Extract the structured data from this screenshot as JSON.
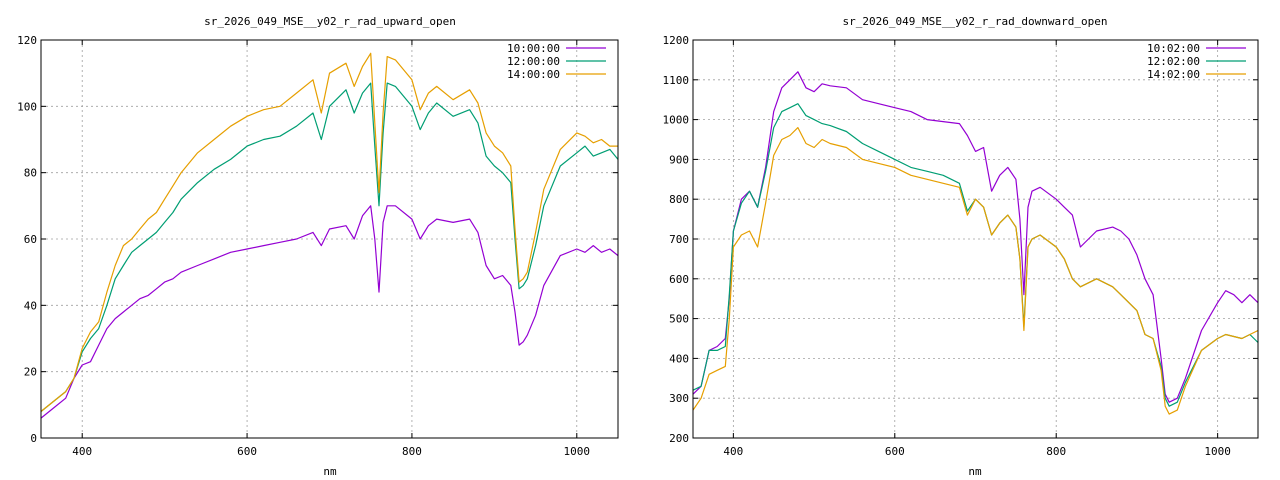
{
  "chart_data": [
    {
      "type": "line",
      "title": "sr_2026_049_MSE__y02_r_rad_upward_open",
      "xlabel": "nm",
      "ylabel": "",
      "xlim": [
        350,
        1050
      ],
      "ylim": [
        0,
        120
      ],
      "xticks": [
        "400",
        "600",
        "800",
        "1000"
      ],
      "yticks": [
        "0",
        "20",
        "40",
        "60",
        "80",
        "100",
        "120"
      ],
      "grid": true,
      "legend_position": "top-right",
      "series": [
        {
          "name": "10:00:00",
          "color": "#9400d3",
          "x": [
            350,
            365,
            380,
            390,
            400,
            410,
            420,
            430,
            440,
            450,
            460,
            470,
            480,
            490,
            500,
            510,
            520,
            540,
            560,
            580,
            600,
            620,
            640,
            660,
            680,
            690,
            700,
            720,
            730,
            740,
            750,
            755,
            760,
            765,
            770,
            780,
            800,
            810,
            820,
            830,
            850,
            870,
            880,
            890,
            900,
            910,
            920,
            925,
            930,
            935,
            940,
            950,
            960,
            980,
            1000,
            1010,
            1020,
            1030,
            1040,
            1050
          ],
          "y": [
            6,
            9,
            12,
            18,
            22,
            23,
            28,
            33,
            36,
            38,
            40,
            42,
            43,
            45,
            47,
            48,
            50,
            52,
            54,
            56,
            57,
            58,
            59,
            60,
            62,
            58,
            63,
            64,
            60,
            67,
            70,
            60,
            44,
            65,
            70,
            70,
            66,
            60,
            64,
            66,
            65,
            66,
            62,
            52,
            48,
            49,
            46,
            38,
            28,
            29,
            31,
            37,
            46,
            55,
            57,
            56,
            58,
            56,
            57,
            55
          ]
        },
        {
          "name": "12:00:00",
          "color": "#009e73",
          "x": [
            350,
            365,
            380,
            390,
            400,
            410,
            420,
            430,
            440,
            450,
            460,
            470,
            480,
            490,
            500,
            510,
            520,
            540,
            560,
            580,
            600,
            620,
            640,
            660,
            680,
            690,
            700,
            720,
            730,
            740,
            750,
            755,
            760,
            765,
            770,
            780,
            800,
            810,
            820,
            830,
            850,
            870,
            880,
            890,
            900,
            910,
            920,
            925,
            930,
            935,
            940,
            950,
            960,
            980,
            1000,
            1010,
            1020,
            1030,
            1040,
            1050
          ],
          "y": [
            8,
            11,
            14,
            18,
            26,
            30,
            33,
            40,
            48,
            52,
            56,
            58,
            60,
            62,
            65,
            68,
            72,
            77,
            81,
            84,
            88,
            90,
            91,
            94,
            98,
            90,
            100,
            105,
            98,
            104,
            107,
            88,
            70,
            92,
            107,
            106,
            100,
            93,
            98,
            101,
            97,
            99,
            95,
            85,
            82,
            80,
            77,
            60,
            45,
            46,
            48,
            58,
            70,
            82,
            86,
            88,
            85,
            86,
            87,
            84
          ]
        },
        {
          "name": "14:00:00",
          "color": "#e69f00",
          "x": [
            350,
            365,
            380,
            390,
            400,
            410,
            420,
            430,
            440,
            450,
            460,
            470,
            480,
            490,
            500,
            510,
            520,
            540,
            560,
            580,
            600,
            620,
            640,
            660,
            680,
            690,
            700,
            720,
            730,
            740,
            750,
            755,
            760,
            765,
            770,
            780,
            800,
            810,
            820,
            830,
            850,
            870,
            880,
            890,
            900,
            910,
            920,
            925,
            930,
            935,
            940,
            950,
            960,
            980,
            1000,
            1010,
            1020,
            1030,
            1040,
            1050
          ],
          "y": [
            8,
            11,
            14,
            18,
            27,
            32,
            35,
            44,
            52,
            58,
            60,
            63,
            66,
            68,
            72,
            76,
            80,
            86,
            90,
            94,
            97,
            99,
            100,
            104,
            108,
            98,
            110,
            113,
            106,
            112,
            116,
            95,
            74,
            98,
            115,
            114,
            108,
            99,
            104,
            106,
            102,
            105,
            101,
            92,
            88,
            86,
            82,
            63,
            47,
            48,
            50,
            62,
            75,
            87,
            92,
            91,
            89,
            90,
            88,
            88
          ]
        }
      ]
    },
    {
      "type": "line",
      "title": "sr_2026_049_MSE__y02_r_rad_downward_open",
      "xlabel": "nm",
      "ylabel": "",
      "xlim": [
        350,
        1050
      ],
      "ylim": [
        200,
        1200
      ],
      "xticks": [
        "400",
        "600",
        "800",
        "1000"
      ],
      "yticks": [
        "200",
        "300",
        "400",
        "500",
        "600",
        "700",
        "800",
        "900",
        "1000",
        "1100",
        "1200"
      ],
      "grid": true,
      "legend_position": "top-right",
      "series": [
        {
          "name": "10:02:00",
          "color": "#9400d3",
          "x": [
            350,
            360,
            370,
            380,
            390,
            395,
            400,
            410,
            420,
            430,
            440,
            450,
            460,
            470,
            480,
            490,
            500,
            510,
            520,
            540,
            560,
            580,
            600,
            620,
            640,
            660,
            680,
            690,
            700,
            710,
            720,
            730,
            740,
            750,
            755,
            760,
            765,
            770,
            780,
            800,
            810,
            820,
            830,
            850,
            870,
            880,
            890,
            900,
            910,
            920,
            930,
            935,
            940,
            950,
            960,
            980,
            1000,
            1010,
            1020,
            1030,
            1040,
            1050
          ],
          "y": [
            310,
            330,
            420,
            430,
            450,
            550,
            720,
            800,
            820,
            780,
            880,
            1020,
            1080,
            1100,
            1120,
            1080,
            1070,
            1090,
            1085,
            1080,
            1050,
            1040,
            1030,
            1020,
            1000,
            995,
            990,
            960,
            920,
            930,
            820,
            860,
            880,
            850,
            750,
            560,
            780,
            820,
            830,
            800,
            780,
            760,
            680,
            720,
            730,
            720,
            700,
            660,
            600,
            560,
            400,
            310,
            290,
            300,
            350,
            470,
            540,
            570,
            560,
            540,
            560,
            540
          ]
        },
        {
          "name": "12:02:00",
          "color": "#009e73",
          "x": [
            350,
            360,
            370,
            380,
            390,
            395,
            400,
            410,
            420,
            430,
            440,
            450,
            460,
            470,
            480,
            490,
            500,
            510,
            520,
            540,
            560,
            580,
            600,
            620,
            640,
            660,
            680,
            690,
            700,
            710,
            720,
            730,
            740,
            750,
            755,
            760,
            765,
            770,
            780,
            800,
            810,
            820,
            830,
            850,
            870,
            880,
            890,
            900,
            910,
            920,
            930,
            935,
            940,
            950,
            960,
            980,
            1000,
            1010,
            1020,
            1030,
            1040,
            1050
          ],
          "y": [
            320,
            330,
            420,
            420,
            430,
            560,
            720,
            790,
            820,
            780,
            870,
            980,
            1020,
            1030,
            1040,
            1010,
            1000,
            990,
            985,
            970,
            940,
            920,
            900,
            880,
            870,
            860,
            840,
            770,
            800,
            780,
            710,
            740,
            760,
            730,
            650,
            480,
            680,
            700,
            710,
            680,
            650,
            600,
            580,
            600,
            580,
            560,
            540,
            520,
            460,
            450,
            380,
            300,
            280,
            290,
            340,
            420,
            450,
            460,
            455,
            450,
            460,
            440
          ]
        },
        {
          "name": "14:02:00",
          "color": "#e69f00",
          "x": [
            350,
            360,
            370,
            380,
            390,
            395,
            400,
            410,
            420,
            430,
            440,
            450,
            460,
            470,
            480,
            490,
            500,
            510,
            520,
            540,
            560,
            580,
            600,
            620,
            640,
            660,
            680,
            690,
            700,
            710,
            720,
            730,
            740,
            750,
            755,
            760,
            765,
            770,
            780,
            800,
            810,
            820,
            830,
            850,
            870,
            880,
            890,
            900,
            910,
            920,
            930,
            935,
            940,
            950,
            960,
            980,
            1000,
            1010,
            1020,
            1030,
            1040,
            1050
          ],
          "y": [
            270,
            300,
            360,
            370,
            380,
            500,
            680,
            710,
            720,
            680,
            790,
            910,
            950,
            960,
            980,
            940,
            930,
            950,
            940,
            930,
            900,
            890,
            880,
            860,
            850,
            840,
            830,
            760,
            800,
            780,
            710,
            740,
            760,
            730,
            650,
            470,
            680,
            700,
            710,
            680,
            650,
            600,
            580,
            600,
            580,
            560,
            540,
            520,
            460,
            450,
            370,
            280,
            260,
            270,
            330,
            420,
            450,
            460,
            455,
            450,
            460,
            470
          ]
        }
      ]
    }
  ]
}
